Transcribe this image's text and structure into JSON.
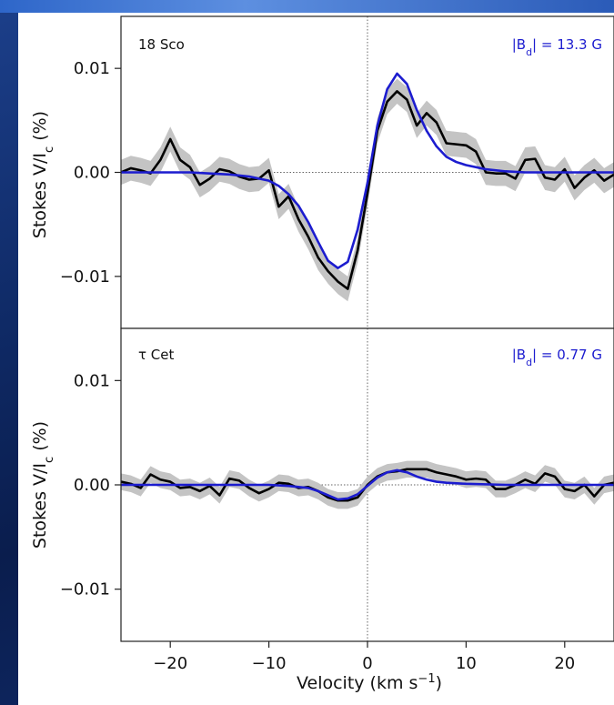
{
  "chart_data": [
    {
      "type": "line",
      "panel": "top",
      "star_label": "18 Sco",
      "field_label": "|Bₐ| = 13.3 G",
      "field_label_parts": {
        "prefix": "|B",
        "subscript": "d",
        "suffix": "| = 13.3 G"
      },
      "xlim": [
        -25,
        25
      ],
      "ylim": [
        -0.015,
        0.015
      ],
      "yticks": [
        "0.01",
        "0.00",
        "−0.01"
      ],
      "ylabel_parts": {
        "prefix": "Stokes V/I",
        "subscript": "c",
        "suffix": " (%)"
      },
      "colors": {
        "observed": "#000000",
        "model": "#1c1ccf",
        "band": "#c4c4c4"
      },
      "series": [
        {
          "x": [
            -25,
            -24,
            -23,
            -22,
            -21,
            -20,
            -19,
            -18,
            -17,
            -16,
            -15,
            -14,
            -13,
            -12,
            -11,
            -10,
            -9,
            -8,
            -7,
            -6,
            -5,
            -4,
            -3,
            -2,
            -1,
            0,
            1,
            2,
            3,
            4,
            5,
            6,
            7,
            8,
            9,
            10,
            11,
            12,
            13,
            14,
            15,
            16,
            17,
            18,
            19,
            20,
            21,
            22,
            23,
            24,
            25
          ],
          "y": [
            0.0,
            0.0004,
            0.0002,
            -0.0001,
            0.0012,
            0.0032,
            0.0012,
            0.0005,
            -0.0012,
            -0.0006,
            0.0003,
            0.0001,
            -0.0004,
            -0.0007,
            -0.0006,
            0.0002,
            -0.0033,
            -0.0023,
            -0.0045,
            -0.0062,
            -0.0082,
            -0.0095,
            -0.0105,
            -0.0112,
            -0.0075,
            -0.002,
            0.004,
            0.0068,
            0.0078,
            0.007,
            0.0045,
            0.0057,
            0.0048,
            0.0028,
            0.0027,
            0.0026,
            0.002,
            0.0,
            -0.0001,
            -0.0001,
            -0.0006,
            0.0012,
            0.0013,
            -0.0005,
            -0.0007,
            0.0003,
            -0.0015,
            -0.0005,
            0.0002,
            -0.0008,
            -0.0002
          ],
          "band_halfwidth": 0.0012
        },
        {
          "x": [
            -25,
            -22,
            -20,
            -18,
            -16,
            -14,
            -12,
            -10,
            -9,
            -8,
            -7,
            -6,
            -5,
            -4,
            -3,
            -2,
            -1,
            0,
            1,
            2,
            3,
            4,
            5,
            6,
            7,
            8,
            9,
            10,
            12,
            14,
            16,
            18,
            20,
            22,
            25
          ],
          "y": [
            0.0,
            0.0,
            0.0,
            0.0,
            -0.0001,
            -0.0002,
            -0.0004,
            -0.0008,
            -0.0013,
            -0.0021,
            -0.0032,
            -0.0048,
            -0.0067,
            -0.0085,
            -0.0092,
            -0.0086,
            -0.0055,
            -0.001,
            0.0045,
            0.008,
            0.0095,
            0.0085,
            0.006,
            0.004,
            0.0025,
            0.0015,
            0.001,
            0.0007,
            0.0003,
            0.0001,
            0.0,
            0.0,
            0.0,
            0.0,
            0.0
          ]
        }
      ]
    },
    {
      "type": "line",
      "panel": "bottom",
      "star_label": "τ Cet",
      "field_label": "|Bₐ| = 0.77 G",
      "field_label_parts": {
        "prefix": "|B",
        "subscript": "d",
        "suffix": "| = 0.77 G"
      },
      "xlim": [
        -25,
        25
      ],
      "ylim": [
        -0.015,
        0.015
      ],
      "yticks": [
        "0.01",
        "0.00",
        "−0.01"
      ],
      "xticks": [
        "−20",
        "−10",
        "0",
        "10",
        "20"
      ],
      "xtick_values": [
        -20,
        -10,
        0,
        10,
        20
      ],
      "xlabel_parts": {
        "prefix": "Velocity (km s",
        "superscript": "−1",
        "suffix": ")"
      },
      "ylabel_parts": {
        "prefix": "Stokes V/I",
        "subscript": "c",
        "suffix": " (%)"
      },
      "colors": {
        "observed": "#000000",
        "model": "#1c1ccf",
        "band": "#c4c4c4"
      },
      "series": [
        {
          "x": [
            -25,
            -24,
            -23,
            -22,
            -21,
            -20,
            -19,
            -18,
            -17,
            -16,
            -15,
            -14,
            -13,
            -12,
            -11,
            -10,
            -9,
            -8,
            -7,
            -6,
            -5,
            -4,
            -3,
            -2,
            -1,
            0,
            1,
            2,
            3,
            4,
            5,
            6,
            7,
            8,
            9,
            10,
            11,
            12,
            13,
            14,
            15,
            16,
            17,
            18,
            19,
            20,
            21,
            22,
            23,
            24,
            25
          ],
          "y": [
            0.0003,
            0.0001,
            -0.0003,
            0.001,
            0.0005,
            0.0003,
            -0.0003,
            -0.0002,
            -0.0006,
            -0.0001,
            -0.001,
            0.0006,
            0.0004,
            -0.0003,
            -0.0008,
            -0.0004,
            0.0002,
            0.0001,
            -0.0003,
            -0.0002,
            -0.0006,
            -0.0012,
            -0.0015,
            -0.0015,
            -0.0012,
            0.0,
            0.0008,
            0.0012,
            0.0013,
            0.0015,
            0.0015,
            0.0015,
            0.0012,
            0.001,
            0.0008,
            0.0005,
            0.0006,
            0.0005,
            -0.0004,
            -0.0004,
            0.0,
            0.0005,
            0.0001,
            0.0011,
            0.0008,
            -0.0004,
            -0.0006,
            0.0,
            -0.0011,
            0.0,
            0.0002
          ],
          "band_halfwidth": 0.0008
        },
        {
          "x": [
            -25,
            -20,
            -15,
            -10,
            -8,
            -6,
            -5,
            -4,
            -3,
            -2,
            -1,
            0,
            1,
            2,
            3,
            4,
            5,
            6,
            7,
            8,
            10,
            14,
            20,
            25
          ],
          "y": [
            0.0,
            0.0,
            0.0,
            0.0,
            -0.0001,
            -0.0003,
            -0.0006,
            -0.001,
            -0.0014,
            -0.0013,
            -0.0009,
            -0.0001,
            0.0007,
            0.0012,
            0.0014,
            0.0012,
            0.0008,
            0.0005,
            0.0003,
            0.0002,
            0.0001,
            0.0,
            0.0,
            0.0
          ]
        }
      ]
    }
  ]
}
